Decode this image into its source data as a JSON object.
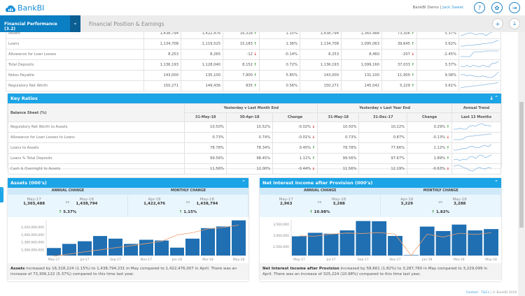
{
  "header": {
    "app_name": "BankBI",
    "org": "BankBI Demo",
    "separator": "|",
    "user": "Jack Sweet",
    "icons": [
      "help-icon",
      "settings-icon",
      "logout-icon"
    ]
  },
  "nav": {
    "active_tab": "Financial Performance (3.2)",
    "page_title": "Financial Position & Earnings",
    "actions": [
      "add-icon",
      "download-icon"
    ]
  },
  "top_table": {
    "rows": [
      {
        "label": "Assets",
        "v": [
          "1,438,794",
          "1,422,476",
          "16,318",
          "1.15%",
          "1,438,794",
          "1,365,488",
          "73,306",
          "5.37%"
        ],
        "d1": "up",
        "d2": "up",
        "spark": [
          3,
          4,
          5,
          6,
          5,
          4,
          5,
          5,
          3,
          5,
          7,
          8,
          9
        ]
      },
      {
        "label": "Loans",
        "v": [
          "1,134,708",
          "1,119,525",
          "15,183",
          "1.36%",
          "1,134,708",
          "1,095,063",
          "39,645",
          "3.62%"
        ],
        "d1": "up",
        "d2": "up",
        "spark": [
          2,
          2,
          3,
          3,
          3,
          4,
          4,
          5,
          5,
          6,
          6,
          8,
          9
        ]
      },
      {
        "label": "Allowance for Loan Losses",
        "v": [
          "8,253",
          "8,265",
          "-12",
          "-0.14%",
          "8,253",
          "8,460",
          "-207",
          "-2.45%"
        ],
        "d1": "dn",
        "d2": "dn",
        "spark": [
          2,
          2,
          2,
          2,
          7,
          8,
          8,
          8,
          9,
          9,
          9,
          9,
          9
        ]
      },
      {
        "label": "Total Deposits",
        "v": [
          "1,136,193",
          "1,128,040",
          "8,152",
          "0.72%",
          "1,136,193",
          "1,099,160",
          "37,033",
          "3.37%"
        ],
        "d1": "up",
        "d2": "up",
        "spark": [
          4,
          3,
          5,
          3,
          5,
          4,
          3,
          5,
          4,
          3,
          7,
          7,
          9
        ]
      },
      {
        "label": "Notes Payable",
        "v": [
          "143,000",
          "135,100",
          "7,900",
          "5.85%",
          "143,000",
          "131,100",
          "11,900",
          "9.08%"
        ],
        "d1": "up",
        "d2": "up",
        "spark": [
          5,
          6,
          4,
          5,
          4,
          3,
          3,
          4,
          3,
          2,
          2,
          5,
          9
        ]
      },
      {
        "label": "Regulatory Net Worth",
        "v": [
          "150,271",
          "149,436",
          "835",
          "0.56%",
          "150,271",
          "145,042",
          "5,229",
          "3.61%"
        ],
        "d1": "up",
        "d2": "up",
        "spark": [
          1,
          2,
          3,
          3,
          4,
          4,
          5,
          5,
          6,
          7,
          7,
          8,
          9
        ]
      }
    ]
  },
  "key_ratios": {
    "title": "Key Ratios",
    "col_label": "Balance Sheet (%)",
    "group1": "Yesterday v Last Month End",
    "group2": "Yesterday v Last Year End",
    "group3": "Annual Trend",
    "sub": [
      "31-May-18",
      "30-Apr-18",
      "Change",
      "31-May-18",
      "31-Dec-17",
      "Change",
      "Last 13 Months"
    ],
    "rows": [
      {
        "label": "Regulatory Net Worth to Assets",
        "v": [
          "10.50%",
          "10.52%",
          "-0.02%",
          "10.50%",
          "10.22%",
          "0.29%"
        ],
        "d1": "dn",
        "d2": "up",
        "spark": [
          3,
          3,
          4,
          3,
          3,
          6,
          7,
          6,
          8,
          9,
          7,
          7,
          6
        ]
      },
      {
        "label": "Allowance for Loan Losses to Loans",
        "v": [
          "0.73%",
          "0.74%",
          "-0.01%",
          "0.73%",
          "0.87%",
          "-0.13%"
        ],
        "d1": "dn",
        "d2": "dn",
        "spark": [
          1,
          1,
          1,
          2,
          5,
          6,
          6,
          7,
          7,
          8,
          8,
          9,
          9
        ]
      },
      {
        "label": "Loans to Assets",
        "v": [
          "78.78%",
          "78.34%",
          "0.45%",
          "78.78%",
          "77.66%",
          "1.12%"
        ],
        "d1": "up",
        "d2": "up",
        "spark": [
          2,
          2,
          3,
          4,
          4,
          6,
          7,
          5,
          5,
          7,
          8,
          6,
          9
        ]
      },
      {
        "label": "Loans % Total Deposits",
        "v": [
          "99.56%",
          "98.45%",
          "1.11%",
          "99.56%",
          "97.67%",
          "1.89%"
        ],
        "d1": "up",
        "d2": "up",
        "spark": [
          2,
          3,
          1,
          3,
          2,
          6,
          7,
          4,
          8,
          9,
          5,
          7,
          9
        ]
      },
      {
        "label": "Cash & Overnight to Assets",
        "v": [
          "11.56%",
          "12.00%",
          "-0.44%",
          "11.56%",
          "12.19%",
          "-0.63%"
        ],
        "d1": "dn",
        "d2": "dn",
        "spark": [
          7,
          8,
          8,
          6,
          5,
          3,
          2,
          4,
          6,
          5,
          4,
          6,
          5
        ]
      }
    ]
  },
  "assets": {
    "title": "Assets (000's)",
    "annual_label": "ANNUAL CHANGE",
    "monthly_label": "MONTHLY CHANGE",
    "vs": "vs",
    "annual": {
      "from_label": "May-17",
      "from": "1,365,488",
      "to_label": "May-18",
      "to": "1,438,794",
      "pct": "5.37%"
    },
    "monthly": {
      "from_label": "Apr-18",
      "from": "1,422,476",
      "to_label": "May-18",
      "to": "1,438,794",
      "pct": "1.15%"
    },
    "desc_bold": "Assets",
    "desc": " increased by 16,318,224 (1.15%) to 1,438,794,231 in May compared to 1,422,476,007 in April. There was an increase of 73,306,122 (5.37%) compared to this time last year."
  },
  "nii": {
    "title": "Net Interest Income after Provision (000's)",
    "annual_label": "ANNUAL CHANGE",
    "monthly_label": "MONTHLY CHANGE",
    "vs": "vs",
    "annual": {
      "from_label": "May-17",
      "from": "2,963",
      "to_label": "May-18",
      "to": "3,288",
      "pct": "10.98%"
    },
    "monthly": {
      "from_label": "Apr-18",
      "from": "3,229",
      "to_label": "May-18",
      "to": "3,288",
      "pct": "1.82%"
    },
    "desc_bold": "Net Interest Income after Provision",
    "desc": " increased by 58,661 (1.82%) to 3,287,760 in May compared to 3,229,099 in April. There was an increase of 325,224 (10.98%) compared to this time last year."
  },
  "colors": {
    "accent": "#1ba4e6",
    "nav_active": "#0b7fc3",
    "bar": "#1f6fb2",
    "trend": "#f0a070",
    "up": "#1e8a1e",
    "down": "#d22222"
  },
  "chart_data": [
    {
      "type": "bar",
      "title": "Assets (000's)",
      "categories": [
        "May-17",
        "Jun-17",
        "Jul-17",
        "Aug-17",
        "Sep-17",
        "Oct-17",
        "Nov-17",
        "Dec-17",
        "Jan-18",
        "Feb-18",
        "Mar-18",
        "Apr-18",
        "May-18"
      ],
      "tick_labels": [
        "May-17",
        "Jul-17",
        "Sep-17",
        "Nov-17",
        "Jan-18",
        "Mar-18",
        "May-18"
      ],
      "series": [
        {
          "type": "bar",
          "values": [
            1365000000,
            1376000000,
            1383000000,
            1397000000,
            1390000000,
            1376000000,
            1387000000,
            1385000000,
            1366000000,
            1390000000,
            1418000000,
            1422476007,
            1438794231
          ]
        },
        {
          "type": "line",
          "values": [
            1343000000,
            1349000000,
            1355000000,
            1360000000,
            1366000000,
            1371000000,
            1377000000,
            1383000000,
            1400000000,
            1406000000,
            1416000000,
            1420000000,
            1426000000
          ]
        }
      ],
      "yticks": [
        1360000000,
        1380000000,
        1400000000,
        1420000000
      ],
      "yticklabels": [
        "1,360,000,000",
        "1,380,000,000",
        "1,400,000,000",
        "1,420,000,000"
      ],
      "ylim": [
        1345000000,
        1440000000
      ]
    },
    {
      "type": "bar",
      "title": "Net Interest Income after Provision (000's)",
      "categories": [
        "May-17",
        "Jun-17",
        "Jul-17",
        "Aug-17",
        "Sep-17",
        "Oct-17",
        "Nov-17",
        "Dec-17",
        "Jan-18",
        "Feb-18",
        "Mar-18",
        "Apr-18",
        "May-18"
      ],
      "tick_labels": [
        "May-17",
        "Jul-17",
        "Sep-17",
        "Nov-17",
        "Jan-18",
        "Mar-18",
        "May-18"
      ],
      "series": [
        {
          "type": "bar",
          "values": [
            2963000,
            3120000,
            3080000,
            3230000,
            3650000,
            3640000,
            2980000,
            2120000,
            3400000,
            3200000,
            3490000,
            3229099,
            3287760
          ]
        },
        {
          "type": "line",
          "values": [
            2980000,
            2970000,
            3060000,
            3110000,
            3090000,
            3130000,
            3060000,
            2100000,
            3060000,
            2930000,
            3100000,
            3050000,
            3120000
          ]
        }
      ],
      "yticks": [
        2500000,
        3000000,
        3500000
      ],
      "yticklabels": [
        "2,500,000",
        "3,000,000",
        "3,500,000"
      ],
      "ylim": [
        2100000,
        3700000
      ]
    }
  ],
  "footer": {
    "contact": "Contact",
    "terms": "T&Cs",
    "copyright": "| © BankBI 2018"
  }
}
